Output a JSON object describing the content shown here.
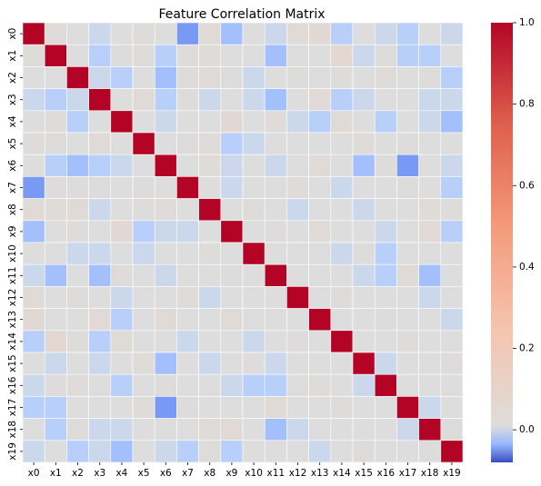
{
  "chart_data": {
    "type": "heatmap",
    "title": "Feature Correlation Matrix",
    "rows": [
      "x0",
      "x1",
      "x2",
      "x3",
      "x4",
      "x5",
      "x6",
      "x7",
      "x8",
      "x9",
      "x10",
      "x11",
      "x12",
      "x13",
      "x14",
      "x15",
      "x16",
      "x17",
      "x18",
      "x19"
    ],
    "columns": [
      "x0",
      "x1",
      "x2",
      "x3",
      "x4",
      "x5",
      "x6",
      "x7",
      "x8",
      "x9",
      "x10",
      "x11",
      "x12",
      "x13",
      "x14",
      "x15",
      "x16",
      "x17",
      "x18",
      "x19"
    ],
    "values": [
      [
        1.0,
        0.02,
        0.0,
        -0.01,
        0.0,
        0.02,
        0.0,
        -0.05,
        0.03,
        -0.03,
        0.0,
        -0.01,
        0.03,
        0.05,
        -0.02,
        0.0,
        -0.01,
        -0.02,
        0.0,
        -0.01
      ],
      [
        0.02,
        1.0,
        0.0,
        -0.02,
        0.01,
        0.01,
        -0.02,
        0.01,
        0.02,
        0.0,
        0.0,
        -0.03,
        0.0,
        0.0,
        0.06,
        -0.01,
        0.01,
        -0.02,
        -0.02,
        0.0
      ],
      [
        0.0,
        0.0,
        1.0,
        -0.01,
        -0.02,
        0.0,
        -0.03,
        0.01,
        0.03,
        0.01,
        -0.01,
        0.0,
        0.01,
        0.0,
        0.01,
        0.0,
        0.02,
        0.0,
        0.01,
        -0.02
      ],
      [
        -0.01,
        -0.02,
        -0.01,
        1.0,
        0.0,
        0.03,
        -0.02,
        0.01,
        -0.01,
        0.0,
        -0.01,
        -0.03,
        0.0,
        0.04,
        -0.02,
        -0.01,
        0.0,
        0.0,
        -0.01,
        -0.01
      ],
      [
        0.0,
        0.01,
        -0.02,
        0.0,
        1.0,
        0.0,
        -0.01,
        0.0,
        0.0,
        0.05,
        0.0,
        0.02,
        -0.01,
        -0.02,
        0.03,
        0.0,
        -0.02,
        0.0,
        -0.01,
        -0.03
      ],
      [
        0.02,
        0.01,
        0.0,
        0.03,
        0.0,
        1.0,
        0.0,
        0.01,
        0.01,
        -0.02,
        -0.01,
        0.0,
        0.0,
        0.0,
        0.0,
        0.02,
        0.0,
        0.01,
        0.0,
        0.0
      ],
      [
        0.0,
        -0.02,
        -0.03,
        -0.02,
        -0.01,
        0.0,
        1.0,
        0.0,
        0.02,
        -0.01,
        0.0,
        -0.01,
        0.0,
        0.03,
        0.0,
        -0.03,
        0.01,
        -0.05,
        0.0,
        -0.01
      ],
      [
        -0.05,
        0.01,
        0.01,
        0.01,
        0.0,
        0.01,
        0.0,
        1.0,
        0.0,
        -0.01,
        0.0,
        0.0,
        0.02,
        0.0,
        -0.01,
        0.0,
        0.0,
        0.01,
        0.0,
        -0.02
      ],
      [
        0.03,
        0.02,
        0.03,
        -0.01,
        0.0,
        0.01,
        0.02,
        0.0,
        1.0,
        0.0,
        0.01,
        0.0,
        -0.01,
        0.0,
        0.0,
        -0.01,
        0.0,
        0.0,
        0.02,
        0.01
      ],
      [
        -0.03,
        0.0,
        0.01,
        0.0,
        0.05,
        -0.02,
        -0.01,
        -0.01,
        0.0,
        1.0,
        0.0,
        0.01,
        0.0,
        0.03,
        0.0,
        0.0,
        -0.01,
        0.0,
        0.04,
        -0.02
      ],
      [
        0.0,
        0.0,
        -0.01,
        -0.01,
        0.0,
        -0.01,
        0.0,
        0.0,
        0.01,
        0.0,
        1.0,
        0.0,
        0.0,
        0.0,
        -0.01,
        0.01,
        -0.02,
        0.0,
        0.0,
        0.0
      ],
      [
        -0.01,
        -0.03,
        0.0,
        -0.03,
        0.02,
        0.0,
        -0.01,
        0.0,
        0.0,
        0.01,
        0.0,
        1.0,
        0.0,
        0.0,
        0.0,
        -0.01,
        -0.02,
        0.03,
        -0.03,
        0.0
      ],
      [
        0.03,
        0.0,
        0.01,
        0.0,
        -0.01,
        0.0,
        0.0,
        0.02,
        -0.01,
        0.0,
        0.0,
        0.0,
        1.0,
        0.0,
        0.01,
        0.0,
        0.0,
        0.0,
        -0.01,
        0.0
      ],
      [
        0.05,
        0.0,
        0.0,
        0.04,
        -0.02,
        0.0,
        0.03,
        0.0,
        0.0,
        0.03,
        0.0,
        0.0,
        0.0,
        1.0,
        0.0,
        0.0,
        0.01,
        0.0,
        0.0,
        -0.01
      ],
      [
        -0.02,
        0.06,
        0.01,
        -0.02,
        0.03,
        0.0,
        0.0,
        -0.01,
        0.0,
        0.0,
        -0.01,
        0.0,
        0.01,
        0.0,
        1.0,
        0.0,
        0.0,
        0.02,
        0.0,
        0.0
      ],
      [
        0.0,
        -0.01,
        0.0,
        -0.01,
        0.0,
        0.02,
        -0.03,
        0.0,
        -0.01,
        0.0,
        0.01,
        -0.01,
        0.0,
        0.0,
        0.0,
        1.0,
        -0.01,
        0.0,
        0.0,
        0.01
      ],
      [
        -0.01,
        0.01,
        0.02,
        0.0,
        -0.02,
        0.0,
        0.01,
        0.0,
        0.0,
        -0.01,
        -0.02,
        -0.02,
        0.0,
        0.01,
        0.0,
        -0.01,
        1.0,
        0.0,
        0.0,
        0.0
      ],
      [
        -0.02,
        -0.02,
        0.0,
        0.0,
        0.0,
        0.01,
        -0.05,
        0.01,
        0.0,
        0.0,
        0.0,
        0.03,
        0.0,
        0.0,
        0.02,
        0.0,
        0.0,
        1.0,
        -0.01,
        0.0
      ],
      [
        0.0,
        -0.02,
        0.01,
        -0.01,
        -0.01,
        0.0,
        0.0,
        0.0,
        0.02,
        0.04,
        0.0,
        -0.03,
        -0.01,
        0.0,
        0.0,
        0.0,
        0.0,
        -0.01,
        1.0,
        0.01
      ],
      [
        -0.01,
        0.0,
        -0.02,
        -0.01,
        -0.03,
        0.0,
        -0.01,
        -0.02,
        0.01,
        -0.02,
        0.0,
        0.0,
        0.0,
        -0.01,
        0.0,
        0.01,
        0.0,
        0.0,
        0.01,
        1.0
      ]
    ],
    "colormap": "coolwarm",
    "vmin": -0.08,
    "vmax": 1.0,
    "colorbar_ticks": [
      0.0,
      0.2,
      0.4,
      0.6,
      0.8,
      1.0
    ],
    "colorbar_tick_labels": [
      "0.0",
      "0.2",
      "0.4",
      "0.6",
      "0.8",
      "1.0"
    ],
    "grid": true,
    "legend": "colorbar-right"
  }
}
